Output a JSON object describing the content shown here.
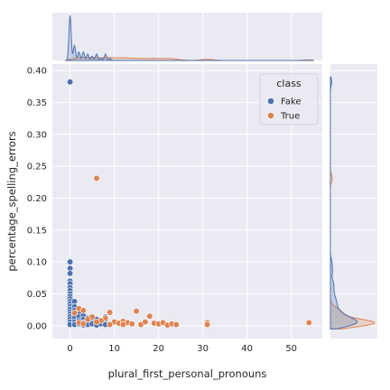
{
  "chart_data": {
    "type": "scatter",
    "subtype": "jointplot-with-marginal-kde",
    "xlabel": "plural_first_personal_pronouns",
    "ylabel": "percentage_spelling_errors",
    "xlim": [
      -4,
      57
    ],
    "ylim": [
      -0.02,
      0.41
    ],
    "xticks": [
      0,
      10,
      20,
      30,
      40,
      50
    ],
    "yticks": [
      0.0,
      0.05,
      0.1,
      0.15,
      0.2,
      0.25,
      0.3,
      0.35,
      0.4
    ],
    "xtick_labels": [
      "0",
      "10",
      "20",
      "30",
      "40",
      "50"
    ],
    "ytick_labels": [
      "0.00",
      "0.05",
      "0.10",
      "0.15",
      "0.20",
      "0.25",
      "0.30",
      "0.35",
      "0.40"
    ],
    "grid": true,
    "background": "#eaeaf2",
    "legend": {
      "title": "class",
      "placement": "upper right",
      "entries": [
        {
          "label": "Fake",
          "color": "#4c72b0"
        },
        {
          "label": "True",
          "color": "#dd8452"
        }
      ]
    },
    "series": [
      {
        "name": "Fake",
        "color": "#4c72b0",
        "points": [
          [
            0,
            0.382
          ],
          [
            0,
            0.1
          ],
          [
            0,
            0.09
          ],
          [
            0,
            0.082
          ],
          [
            0,
            0.07
          ],
          [
            0,
            0.066
          ],
          [
            0,
            0.06
          ],
          [
            0,
            0.055
          ],
          [
            0,
            0.05
          ],
          [
            0,
            0.046
          ],
          [
            0,
            0.042
          ],
          [
            0,
            0.038
          ],
          [
            0,
            0.034
          ],
          [
            0,
            0.03
          ],
          [
            0,
            0.026
          ],
          [
            0,
            0.022
          ],
          [
            0,
            0.018
          ],
          [
            0,
            0.014
          ],
          [
            0,
            0.01
          ],
          [
            0,
            0.006
          ],
          [
            0,
            0.002
          ],
          [
            1,
            0.038
          ],
          [
            1,
            0.03
          ],
          [
            1,
            0.024
          ],
          [
            1,
            0.018
          ],
          [
            1,
            0.012
          ],
          [
            1,
            0.006
          ],
          [
            1,
            0.002
          ],
          [
            2,
            0.02
          ],
          [
            2,
            0.014
          ],
          [
            2,
            0.008
          ],
          [
            2,
            0.003
          ],
          [
            3,
            0.016
          ],
          [
            3,
            0.01
          ],
          [
            3,
            0.005
          ],
          [
            3,
            0.001
          ],
          [
            4,
            0.012
          ],
          [
            4,
            0.006
          ],
          [
            4,
            0.002
          ],
          [
            5,
            0.008
          ],
          [
            5,
            0.003
          ],
          [
            6,
            0.01
          ],
          [
            6,
            0.004
          ],
          [
            6,
            0.001
          ],
          [
            7,
            0.003
          ],
          [
            8,
            0.014
          ],
          [
            8,
            0.006
          ],
          [
            8,
            0.002
          ],
          [
            9,
            0.003
          ]
        ]
      },
      {
        "name": "True",
        "color": "#dd8452",
        "points": [
          [
            6,
            0.231
          ],
          [
            2,
            0.027
          ],
          [
            3,
            0.024
          ],
          [
            1,
            0.02
          ],
          [
            9,
            0.021
          ],
          [
            15,
            0.023
          ],
          [
            18,
            0.015
          ],
          [
            8,
            0.012
          ],
          [
            4,
            0.01
          ],
          [
            5,
            0.014
          ],
          [
            7,
            0.008
          ],
          [
            10,
            0.006
          ],
          [
            11,
            0.004
          ],
          [
            12,
            0.007
          ],
          [
            13,
            0.005
          ],
          [
            14,
            0.003
          ],
          [
            16,
            0.002
          ],
          [
            17,
            0.006
          ],
          [
            19,
            0.004
          ],
          [
            20,
            0.003
          ],
          [
            21,
            0.005
          ],
          [
            22,
            0.001
          ],
          [
            23,
            0.003
          ],
          [
            24,
            0.002
          ],
          [
            31,
            0.005
          ],
          [
            31,
            0.002
          ],
          [
            54,
            0.005
          ],
          [
            2,
            0.005
          ],
          [
            3,
            0.003
          ],
          [
            6,
            0.006
          ],
          [
            9,
            0.002
          ],
          [
            12,
            0.002
          ]
        ]
      }
    ]
  }
}
